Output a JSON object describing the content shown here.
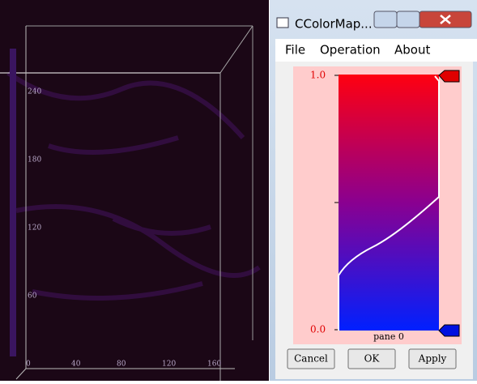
{
  "viewer": {
    "y_axis_labels": [
      "240",
      "180",
      "120",
      "60"
    ],
    "x_axis_labels": [
      "0",
      "40",
      "80",
      "120",
      "160"
    ]
  },
  "window": {
    "title": "CColorMap...",
    "menu": [
      "File",
      "Operation",
      "About"
    ],
    "colormap": {
      "top_label": "1.0",
      "bottom_label": "0.0",
      "pane_label": "pane 0"
    },
    "buttons": [
      "Cancel",
      "OK",
      "Apply"
    ]
  }
}
